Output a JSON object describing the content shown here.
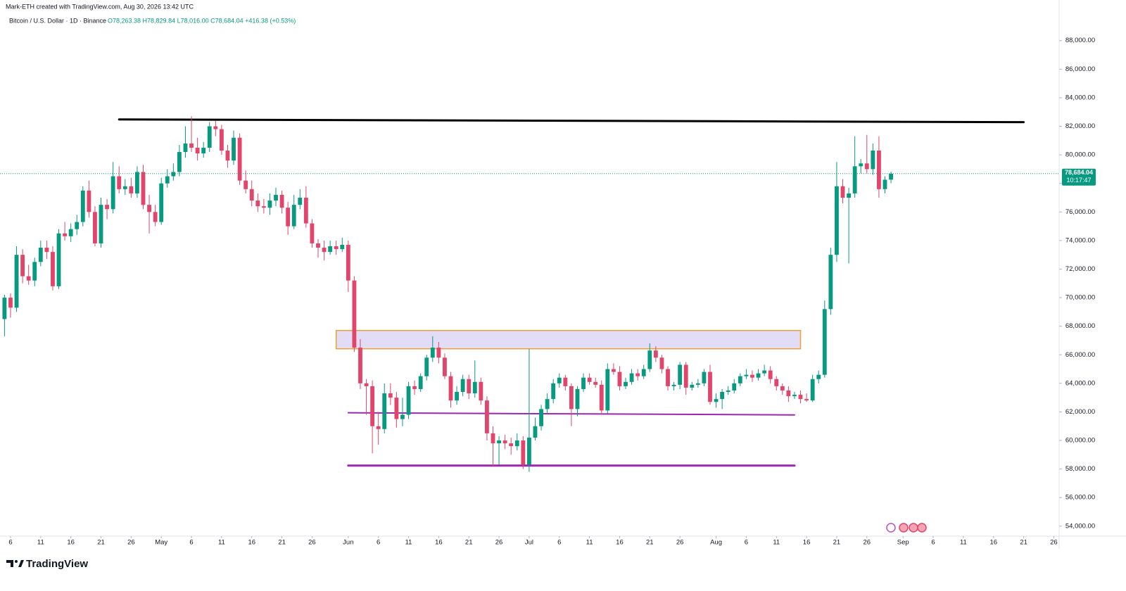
{
  "header": {
    "created_by": "Mark-ETH created with TradingView.com, Aug 30, 2026 13:42 UTC",
    "symbol": "Bitcoin / U.S. Dollar · 1D · Binance",
    "ohlc": "O78,263.38 H78,829.84 L78,016.00 C78,684.04 +416.38 (+0.53%)"
  },
  "chart_data": {
    "type": "candlestick",
    "up_color": "#089981",
    "down_color": "#e2456b",
    "grid": false,
    "xlim": [
      "2026-04-05",
      "2026-09-27"
    ],
    "ylim": [
      53400,
      90450
    ],
    "yticks": [
      {
        "value": 54000,
        "label": "54,000.00"
      },
      {
        "value": 56000,
        "label": "56,000.00"
      },
      {
        "value": 58000,
        "label": "58,000.00"
      },
      {
        "value": 60000,
        "label": "60,000.00"
      },
      {
        "value": 62000,
        "label": "62,000.00"
      },
      {
        "value": 64000,
        "label": "64,000.00"
      },
      {
        "value": 66000,
        "label": "66,000.00"
      },
      {
        "value": 68000,
        "label": "68,000.00"
      },
      {
        "value": 70000,
        "label": "70,000.00"
      },
      {
        "value": 72000,
        "label": "72,000.00"
      },
      {
        "value": 74000,
        "label": "74,000.00"
      },
      {
        "value": 76000,
        "label": "76,000.00"
      },
      {
        "value": 78000,
        "label": "78,000.00"
      },
      {
        "value": 80000,
        "label": "80,000.00"
      },
      {
        "value": 82000,
        "label": "82,000.00"
      },
      {
        "value": 84000,
        "label": "84,000.00"
      },
      {
        "value": 86000,
        "label": "86,000.00"
      },
      {
        "value": 88000,
        "label": "88,000.00"
      }
    ],
    "xticks": [
      {
        "value": "2026-04-06",
        "label": "6"
      },
      {
        "value": "2026-04-11",
        "label": "11"
      },
      {
        "value": "2026-04-16",
        "label": "16"
      },
      {
        "value": "2026-04-21",
        "label": "21"
      },
      {
        "value": "2026-04-26",
        "label": "26"
      },
      {
        "value": "2026-05-01",
        "label": "May"
      },
      {
        "value": "2026-05-06",
        "label": "6"
      },
      {
        "value": "2026-05-11",
        "label": "11"
      },
      {
        "value": "2026-05-16",
        "label": "16"
      },
      {
        "value": "2026-05-21",
        "label": "21"
      },
      {
        "value": "2026-05-26",
        "label": "26"
      },
      {
        "value": "2026-06-01",
        "label": "Jun"
      },
      {
        "value": "2026-06-06",
        "label": "6"
      },
      {
        "value": "2026-06-11",
        "label": "11"
      },
      {
        "value": "2026-06-16",
        "label": "16"
      },
      {
        "value": "2026-06-21",
        "label": "21"
      },
      {
        "value": "2026-06-26",
        "label": "26"
      },
      {
        "value": "2026-07-01",
        "label": "Jul"
      },
      {
        "value": "2026-07-06",
        "label": "6"
      },
      {
        "value": "2026-07-11",
        "label": "11"
      },
      {
        "value": "2026-07-16",
        "label": "16"
      },
      {
        "value": "2026-07-21",
        "label": "21"
      },
      {
        "value": "2026-07-26",
        "label": "26"
      },
      {
        "value": "2026-08-01",
        "label": "Aug"
      },
      {
        "value": "2026-08-06",
        "label": "6"
      },
      {
        "value": "2026-08-11",
        "label": "11"
      },
      {
        "value": "2026-08-16",
        "label": "16"
      },
      {
        "value": "2026-08-21",
        "label": "21"
      },
      {
        "value": "2026-08-26",
        "label": "26"
      },
      {
        "value": "2026-09-01",
        "label": "Sep"
      },
      {
        "value": "2026-09-06",
        "label": "6"
      },
      {
        "value": "2026-09-11",
        "label": "11"
      },
      {
        "value": "2026-09-16",
        "label": "16"
      },
      {
        "value": "2026-09-21",
        "label": "21"
      },
      {
        "value": "2026-09-26",
        "label": "26"
      }
    ],
    "last_price_label": "78,684.04",
    "countdown": "10:17:47",
    "last_price_color": "#089981",
    "drawings": [
      {
        "type": "line",
        "color": "#000000",
        "width": 3,
        "points": [
          [
            "2026-04-24",
            82480
          ],
          [
            "2026-09-21",
            82290
          ]
        ]
      },
      {
        "type": "line",
        "color": "#9c27b0",
        "width": 2,
        "points": [
          [
            "2026-06-01",
            61940
          ],
          [
            "2026-08-14",
            61790
          ]
        ]
      },
      {
        "type": "line",
        "color": "#9c27b0",
        "width": 3,
        "points": [
          [
            "2026-06-01",
            58240
          ],
          [
            "2026-08-14",
            58240
          ]
        ]
      },
      {
        "type": "rect",
        "color": "#f0a030",
        "fill": "#e3dcf7",
        "width": 1.5,
        "points": [
          [
            "2026-05-30",
            67700
          ],
          [
            "2026-08-15",
            66420
          ]
        ]
      }
    ],
    "candles": [
      [
        "2026-04-05",
        68500,
        70200,
        67300,
        70000
      ],
      [
        "2026-04-06",
        70000,
        70300,
        68600,
        69300
      ],
      [
        "2026-04-07",
        69300,
        73600,
        69000,
        73000
      ],
      [
        "2026-04-08",
        73000,
        73400,
        71000,
        71500
      ],
      [
        "2026-04-09",
        71500,
        72300,
        70900,
        71200
      ],
      [
        "2026-04-10",
        71200,
        72800,
        70800,
        72500
      ],
      [
        "2026-04-11",
        72500,
        74000,
        72200,
        73500
      ],
      [
        "2026-04-12",
        73500,
        74000,
        72700,
        73200
      ],
      [
        "2026-04-13",
        73200,
        73600,
        70500,
        70800
      ],
      [
        "2026-04-14",
        70800,
        74800,
        70600,
        74500
      ],
      [
        "2026-04-15",
        74500,
        75300,
        74000,
        74300
      ],
      [
        "2026-04-16",
        74300,
        75200,
        73900,
        74800
      ],
      [
        "2026-04-17",
        74800,
        75800,
        74400,
        75300
      ],
      [
        "2026-04-18",
        75300,
        77800,
        75000,
        77500
      ],
      [
        "2026-04-19",
        77500,
        78200,
        75600,
        76000
      ],
      [
        "2026-04-20",
        76000,
        76400,
        73600,
        73800
      ],
      [
        "2026-04-21",
        73800,
        77000,
        73500,
        76500
      ],
      [
        "2026-04-22",
        76500,
        76900,
        75500,
        76200
      ],
      [
        "2026-04-23",
        76200,
        79500,
        75900,
        78500
      ],
      [
        "2026-04-24",
        78500,
        79200,
        77300,
        77600
      ],
      [
        "2026-04-25",
        77600,
        78300,
        77200,
        77800
      ],
      [
        "2026-04-26",
        77800,
        78400,
        77000,
        77300
      ],
      [
        "2026-04-27",
        77300,
        79200,
        77000,
        78800
      ],
      [
        "2026-04-28",
        78800,
        79300,
        76200,
        76500
      ],
      [
        "2026-04-29",
        76500,
        77200,
        74500,
        76000
      ],
      [
        "2026-04-30",
        76000,
        76500,
        75000,
        75300
      ],
      [
        "2026-05-01",
        75300,
        78400,
        75100,
        78000
      ],
      [
        "2026-05-02",
        78000,
        79000,
        77700,
        78500
      ],
      [
        "2026-05-03",
        78500,
        79400,
        78200,
        78800
      ],
      [
        "2026-05-04",
        78800,
        80700,
        78500,
        80200
      ],
      [
        "2026-05-05",
        80200,
        82000,
        79800,
        80800
      ],
      [
        "2026-05-06",
        80800,
        82700,
        80200,
        80500
      ],
      [
        "2026-05-07",
        80500,
        81200,
        79600,
        80100
      ],
      [
        "2026-05-08",
        80100,
        80900,
        79800,
        80500
      ],
      [
        "2026-05-09",
        80500,
        82300,
        80200,
        82000
      ],
      [
        "2026-05-10",
        82000,
        82400,
        81300,
        81800
      ],
      [
        "2026-05-11",
        81800,
        82100,
        80000,
        80300
      ],
      [
        "2026-05-12",
        80300,
        80700,
        79100,
        79600
      ],
      [
        "2026-05-13",
        79600,
        81700,
        79300,
        81200
      ],
      [
        "2026-05-14",
        81200,
        81500,
        77900,
        78200
      ],
      [
        "2026-05-15",
        78200,
        78900,
        77300,
        77600
      ],
      [
        "2026-05-16",
        77600,
        78200,
        76400,
        76800
      ],
      [
        "2026-05-17",
        76800,
        77300,
        76000,
        76400
      ],
      [
        "2026-05-18",
        76400,
        76900,
        75900,
        76300
      ],
      [
        "2026-05-19",
        76300,
        77300,
        75800,
        76800
      ],
      [
        "2026-05-20",
        76800,
        77700,
        76400,
        77200
      ],
      [
        "2026-05-21",
        77200,
        77500,
        75900,
        76300
      ],
      [
        "2026-05-22",
        76300,
        76700,
        74400,
        75000
      ],
      [
        "2026-05-23",
        75000,
        77200,
        74800,
        76500
      ],
      [
        "2026-05-24",
        76500,
        77600,
        76200,
        77000
      ],
      [
        "2026-05-25",
        77000,
        77800,
        74900,
        75200
      ],
      [
        "2026-05-26",
        75200,
        75500,
        73500,
        73800
      ],
      [
        "2026-05-27",
        73800,
        74100,
        72800,
        73500
      ],
      [
        "2026-05-28",
        73500,
        74000,
        72600,
        73200
      ],
      [
        "2026-05-29",
        73200,
        74000,
        73000,
        73600
      ],
      [
        "2026-05-30",
        73600,
        74000,
        73000,
        73400
      ],
      [
        "2026-05-31",
        73400,
        74200,
        73200,
        73700
      ],
      [
        "2026-06-01",
        73700,
        74000,
        70400,
        71200
      ],
      [
        "2026-06-02",
        71200,
        71500,
        66200,
        66500
      ],
      [
        "2026-06-03",
        66500,
        67100,
        63600,
        64000
      ],
      [
        "2026-06-04",
        64000,
        64300,
        61800,
        63800
      ],
      [
        "2026-06-05",
        63800,
        64200,
        59100,
        61000
      ],
      [
        "2026-06-06",
        61000,
        62000,
        59700,
        60800
      ],
      [
        "2026-06-07",
        60800,
        64000,
        60500,
        63300
      ],
      [
        "2026-06-08",
        63300,
        64000,
        62500,
        63000
      ],
      [
        "2026-06-09",
        63000,
        63400,
        60900,
        61500
      ],
      [
        "2026-06-10",
        61500,
        63000,
        61000,
        61800
      ],
      [
        "2026-06-11",
        61800,
        64100,
        61500,
        63800
      ],
      [
        "2026-06-12",
        63800,
        64200,
        63200,
        63600
      ],
      [
        "2026-06-13",
        63600,
        64700,
        63400,
        64500
      ],
      [
        "2026-06-14",
        64500,
        66000,
        64200,
        65800
      ],
      [
        "2026-06-15",
        65800,
        67300,
        65500,
        66500
      ],
      [
        "2026-06-16",
        66500,
        66900,
        65400,
        65800
      ],
      [
        "2026-06-17",
        65800,
        66100,
        64300,
        64500
      ],
      [
        "2026-06-18",
        64500,
        64800,
        62300,
        62800
      ],
      [
        "2026-06-19",
        62800,
        63800,
        62500,
        63400
      ],
      [
        "2026-06-20",
        63400,
        64600,
        63100,
        64300
      ],
      [
        "2026-06-21",
        64300,
        64600,
        62900,
        63300
      ],
      [
        "2026-06-22",
        63300,
        65600,
        63000,
        64100
      ],
      [
        "2026-06-23",
        64100,
        64400,
        62500,
        62800
      ],
      [
        "2026-06-24",
        62800,
        63100,
        60000,
        60500
      ],
      [
        "2026-06-25",
        60500,
        61000,
        58200,
        59800
      ],
      [
        "2026-06-26",
        59800,
        60300,
        58300,
        60000
      ],
      [
        "2026-06-27",
        60000,
        60400,
        59400,
        59800
      ],
      [
        "2026-06-28",
        59800,
        60200,
        59000,
        59600
      ],
      [
        "2026-06-29",
        59600,
        60500,
        59300,
        60000
      ],
      [
        "2026-06-30",
        60000,
        60300,
        58000,
        58300
      ],
      [
        "2026-07-01",
        58300,
        66400,
        57800,
        60200
      ],
      [
        "2026-07-02",
        60200,
        61600,
        60000,
        61000
      ],
      [
        "2026-07-03",
        61000,
        62500,
        60700,
        62200
      ],
      [
        "2026-07-04",
        62200,
        63300,
        61900,
        62900
      ],
      [
        "2026-07-05",
        62900,
        64300,
        62600,
        64000
      ],
      [
        "2026-07-06",
        64000,
        64700,
        63700,
        64400
      ],
      [
        "2026-07-07",
        64400,
        64600,
        63500,
        63800
      ],
      [
        "2026-07-08",
        63800,
        64000,
        61000,
        62200
      ],
      [
        "2026-07-09",
        62200,
        63800,
        61700,
        63600
      ],
      [
        "2026-07-10",
        63600,
        64700,
        63400,
        64400
      ],
      [
        "2026-07-11",
        64400,
        64700,
        63900,
        64100
      ],
      [
        "2026-07-12",
        64100,
        64400,
        63700,
        63900
      ],
      [
        "2026-07-13",
        63900,
        64200,
        61800,
        62100
      ],
      [
        "2026-07-14",
        62100,
        65400,
        61900,
        65000
      ],
      [
        "2026-07-15",
        65000,
        65400,
        64600,
        64800
      ],
      [
        "2026-07-16",
        64800,
        65200,
        63500,
        63800
      ],
      [
        "2026-07-17",
        63800,
        64400,
        63600,
        64100
      ],
      [
        "2026-07-18",
        64100,
        65000,
        63900,
        64700
      ],
      [
        "2026-07-19",
        64700,
        65000,
        64200,
        64500
      ],
      [
        "2026-07-20",
        64500,
        65300,
        64300,
        65000
      ],
      [
        "2026-07-21",
        65000,
        66800,
        64800,
        66300
      ],
      [
        "2026-07-22",
        66300,
        66600,
        65500,
        65800
      ],
      [
        "2026-07-23",
        65800,
        66000,
        64700,
        65000
      ],
      [
        "2026-07-24",
        65000,
        65200,
        63500,
        63800
      ],
      [
        "2026-07-25",
        63800,
        64100,
        63500,
        63900
      ],
      [
        "2026-07-26",
        63900,
        65500,
        63600,
        65300
      ],
      [
        "2026-07-27",
        65300,
        65500,
        63200,
        63700
      ],
      [
        "2026-07-28",
        63700,
        64100,
        63500,
        63900
      ],
      [
        "2026-07-29",
        63900,
        64300,
        63700,
        64000
      ],
      [
        "2026-07-30",
        64000,
        65000,
        63800,
        64800
      ],
      [
        "2026-07-31",
        64800,
        65300,
        62500,
        62700
      ],
      [
        "2026-08-01",
        62700,
        63300,
        62300,
        62900
      ],
      [
        "2026-08-02",
        62900,
        63600,
        62200,
        63400
      ],
      [
        "2026-08-03",
        63400,
        63800,
        63200,
        63500
      ],
      [
        "2026-08-04",
        63500,
        64300,
        63300,
        64000
      ],
      [
        "2026-08-05",
        64000,
        64700,
        63800,
        64500
      ],
      [
        "2026-08-06",
        64500,
        65000,
        64300,
        64600
      ],
      [
        "2026-08-07",
        64600,
        64900,
        64100,
        64400
      ],
      [
        "2026-08-08",
        64400,
        65000,
        64200,
        64700
      ],
      [
        "2026-08-09",
        64700,
        65300,
        64500,
        64900
      ],
      [
        "2026-08-10",
        64900,
        65200,
        64000,
        64300
      ],
      [
        "2026-08-11",
        64300,
        64500,
        63500,
        63800
      ],
      [
        "2026-08-12",
        63800,
        64000,
        63200,
        63500
      ],
      [
        "2026-08-13",
        63500,
        63800,
        62700,
        63100
      ],
      [
        "2026-08-14",
        63100,
        63400,
        62900,
        63200
      ],
      [
        "2026-08-15",
        63200,
        63500,
        62600,
        62900
      ],
      [
        "2026-08-16",
        62900,
        63300,
        62700,
        62800
      ],
      [
        "2026-08-17",
        62800,
        64600,
        62700,
        64300
      ],
      [
        "2026-08-18",
        64300,
        64900,
        64000,
        64600
      ],
      [
        "2026-08-19",
        64600,
        69800,
        64400,
        69200
      ],
      [
        "2026-08-20",
        69200,
        73500,
        68800,
        73000
      ],
      [
        "2026-08-21",
        73000,
        79500,
        72500,
        77800
      ],
      [
        "2026-08-22",
        77800,
        78300,
        76600,
        77000
      ],
      [
        "2026-08-23",
        77000,
        77700,
        72400,
        77300
      ],
      [
        "2026-08-24",
        77300,
        81300,
        77000,
        79200
      ],
      [
        "2026-08-25",
        79200,
        79700,
        78700,
        79400
      ],
      [
        "2026-08-26",
        79400,
        81400,
        78700,
        79000
      ],
      [
        "2026-08-27",
        79000,
        80800,
        78600,
        80300
      ],
      [
        "2026-08-28",
        80300,
        81300,
        77000,
        77600
      ],
      [
        "2026-08-29",
        77600,
        78500,
        77300,
        78260
      ],
      [
        "2026-08-30",
        78263.38,
        78829.84,
        78016,
        78684.04
      ]
    ]
  },
  "footer": {
    "brand": "TradingView"
  }
}
